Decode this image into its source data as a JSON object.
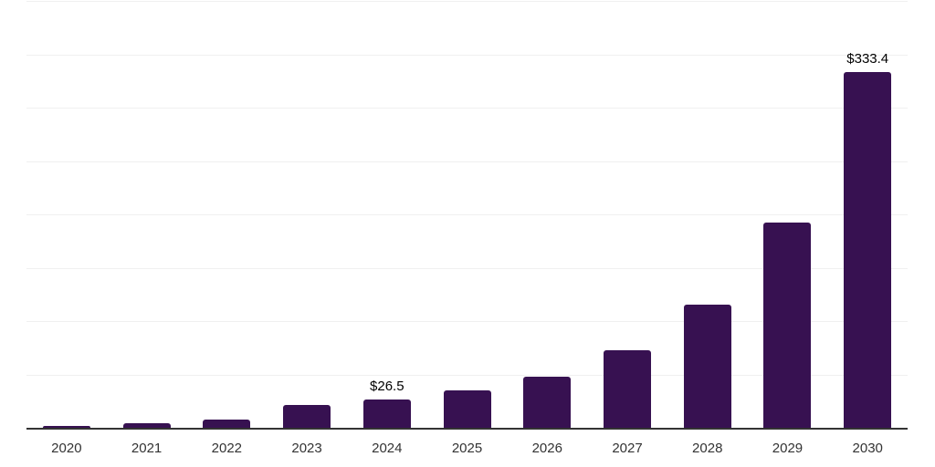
{
  "chart": {
    "background_color": "#ffffff",
    "bar_color": "#371151",
    "gridline_color": "#f0f0f0",
    "axis_line_color": "#333333",
    "tick_label_color": "#333333",
    "data_label_color": "#000000"
  },
  "chart_data": {
    "type": "bar",
    "title": "",
    "xlabel": "",
    "ylabel": "",
    "categories": [
      "2020",
      "2021",
      "2022",
      "2023",
      "2024",
      "2025",
      "2026",
      "2027",
      "2028",
      "2029",
      "2030"
    ],
    "values": [
      2.1,
      4.3,
      7.5,
      21.7,
      26.5,
      35.3,
      48.1,
      72.3,
      115.5,
      192.3,
      333.4
    ],
    "data_labels": [
      {
        "category": "2024",
        "index": 4,
        "text": "$26.5"
      },
      {
        "category": "2030",
        "index": 10,
        "text": "$333.4"
      }
    ],
    "ylim": [
      0,
      400
    ],
    "gridline_interval": 50,
    "grid": true,
    "legend": false,
    "y_axis_labels_visible": false
  }
}
